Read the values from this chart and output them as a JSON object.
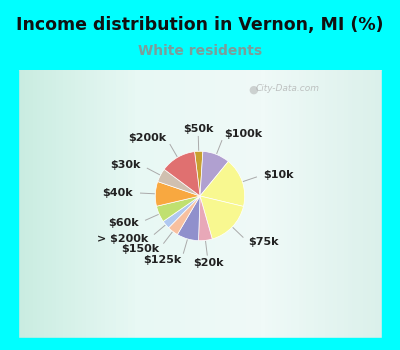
{
  "title": "Income distribution in Vernon, MI (%)",
  "subtitle": "White residents",
  "background_color": "#00FFFF",
  "chart_bg_top": "#e8f2ee",
  "chart_bg_bottom": "#d8ede6",
  "watermark": "City-Data.com",
  "labels": [
    "$50k",
    "$100k",
    "$10k",
    "$75k",
    "$20k",
    "$125k",
    "$150k",
    "> $200k",
    "$60k",
    "$40k",
    "$30k",
    "$200k"
  ],
  "sizes": [
    3,
    10,
    18,
    17,
    5,
    8,
    4,
    3,
    6,
    9,
    5,
    13
  ],
  "colors": [
    "#c8a030",
    "#b0a0d0",
    "#f8f890",
    "#f8f890",
    "#e8a8b8",
    "#9090cc",
    "#f8c0a0",
    "#b0c8f0",
    "#c0e070",
    "#f8a840",
    "#d0c0b0",
    "#e07070"
  ],
  "label_fontsize": 8,
  "title_fontsize": 12.5,
  "subtitle_fontsize": 10,
  "title_color": "#111111",
  "subtitle_color": "#7a9e9a"
}
